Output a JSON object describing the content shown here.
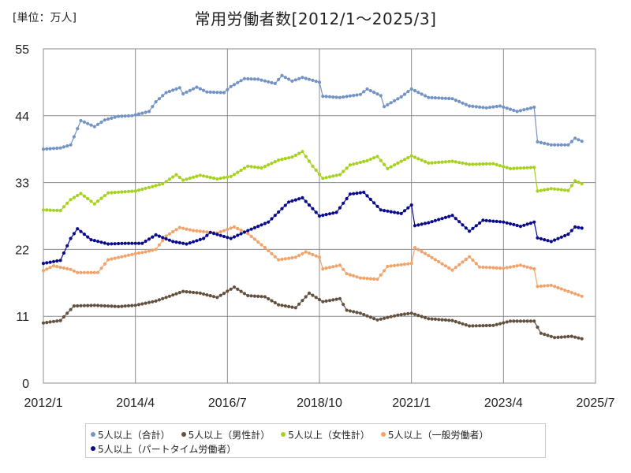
{
  "header": {
    "unit": "[単位：万人]",
    "title": "常用労働者数[2012/1～2025/3]"
  },
  "legend": [
    {
      "label": "5人以上（合計）",
      "color": "#7393c4"
    },
    {
      "label": "5人以上（男性計）",
      "color": "#62513f"
    },
    {
      "label": "5人以上（女性計）",
      "color": "#a6d11e"
    },
    {
      "label": "5人以上（一般労働者）",
      "color": "#f0a46c"
    },
    {
      "label": "5人以上（パートタイム労働者）",
      "color": "#0a0a8c"
    }
  ],
  "chart_data": {
    "type": "line",
    "title": "常用労働者数[2012/1～2025/3]",
    "ylabel": "[単位：万人]",
    "ylim": [
      0,
      55
    ],
    "yticks": [
      0,
      11,
      22,
      33,
      44,
      55
    ],
    "xlim": [
      "2012/1",
      "2025/7"
    ],
    "xticks": [
      "2012/1",
      "2014/4",
      "2016/7",
      "2018/10",
      "2021/1",
      "2023/4",
      "2025/7"
    ],
    "grid": true,
    "legend_position": "bottom",
    "series": [
      {
        "name": "5人以上（合計）",
        "color": "#7393c4",
        "points": [
          [
            "2012/1",
            38.5
          ],
          [
            "2012/6",
            38.7
          ],
          [
            "2012/9",
            39.2
          ],
          [
            "2012/12",
            43.2
          ],
          [
            "2013/4",
            42.2
          ],
          [
            "2013/7",
            43.3
          ],
          [
            "2013/11",
            43.9
          ],
          [
            "2014/3",
            44.0
          ],
          [
            "2014/8",
            44.7
          ],
          [
            "2014/10",
            46.3
          ],
          [
            "2015/1",
            47.8
          ],
          [
            "2015/5",
            48.6
          ],
          [
            "2015/6",
            47.6
          ],
          [
            "2015/10",
            48.7
          ],
          [
            "2016/1",
            47.9
          ],
          [
            "2016/6",
            47.8
          ],
          [
            "2016/8",
            48.8
          ],
          [
            "2016/12",
            50.1
          ],
          [
            "2017/4",
            50.0
          ],
          [
            "2017/9",
            49.3
          ],
          [
            "2017/11",
            50.6
          ],
          [
            "2018/2",
            49.7
          ],
          [
            "2018/5",
            50.3
          ],
          [
            "2018/10",
            49.5
          ],
          [
            "2018/11",
            47.2
          ],
          [
            "2019/4",
            47.0
          ],
          [
            "2019/10",
            47.5
          ],
          [
            "2019/12",
            48.4
          ],
          [
            "2020/4",
            47.3
          ],
          [
            "2020/5",
            45.5
          ],
          [
            "2020/10",
            47.1
          ],
          [
            "2021/1",
            48.4
          ],
          [
            "2021/6",
            47.0
          ],
          [
            "2022/1",
            46.8
          ],
          [
            "2022/6",
            45.6
          ],
          [
            "2022/11",
            45.3
          ],
          [
            "2023/3",
            45.6
          ],
          [
            "2023/8",
            44.7
          ],
          [
            "2024/1",
            45.4
          ],
          [
            "2024/2",
            39.7
          ],
          [
            "2024/6",
            39.2
          ],
          [
            "2024/11",
            39.2
          ],
          [
            "2025/1",
            40.3
          ],
          [
            "2025/3",
            39.8
          ]
        ]
      },
      {
        "name": "5人以上（男性計）",
        "color": "#62513f",
        "points": [
          [
            "2012/1",
            9.9
          ],
          [
            "2012/6",
            10.3
          ],
          [
            "2012/10",
            12.7
          ],
          [
            "2013/4",
            12.8
          ],
          [
            "2013/11",
            12.6
          ],
          [
            "2014/4",
            12.8
          ],
          [
            "2014/10",
            13.5
          ],
          [
            "2015/3",
            14.5
          ],
          [
            "2015/6",
            15.1
          ],
          [
            "2015/11",
            14.8
          ],
          [
            "2016/4",
            14.1
          ],
          [
            "2016/9",
            15.8
          ],
          [
            "2017/1",
            14.4
          ],
          [
            "2017/6",
            14.2
          ],
          [
            "2017/10",
            12.9
          ],
          [
            "2018/3",
            12.4
          ],
          [
            "2018/7",
            14.8
          ],
          [
            "2018/11",
            13.4
          ],
          [
            "2019/4",
            13.9
          ],
          [
            "2019/6",
            12.0
          ],
          [
            "2019/10",
            11.5
          ],
          [
            "2020/3",
            10.4
          ],
          [
            "2020/9",
            11.2
          ],
          [
            "2021/1",
            11.5
          ],
          [
            "2021/6",
            10.6
          ],
          [
            "2022/1",
            10.3
          ],
          [
            "2022/6",
            9.4
          ],
          [
            "2023/1",
            9.5
          ],
          [
            "2023/6",
            10.2
          ],
          [
            "2024/1",
            10.2
          ],
          [
            "2024/3",
            8.2
          ],
          [
            "2024/7",
            7.5
          ],
          [
            "2024/12",
            7.7
          ],
          [
            "2025/3",
            7.3
          ]
        ]
      },
      {
        "name": "5人以上（女性計）",
        "color": "#a6d11e",
        "points": [
          [
            "2012/1",
            28.5
          ],
          [
            "2012/6",
            28.4
          ],
          [
            "2012/9",
            30.2
          ],
          [
            "2012/12",
            31.2
          ],
          [
            "2013/4",
            29.5
          ],
          [
            "2013/8",
            31.3
          ],
          [
            "2014/1",
            31.5
          ],
          [
            "2014/4",
            31.6
          ],
          [
            "2014/8",
            32.2
          ],
          [
            "2014/12",
            32.8
          ],
          [
            "2015/4",
            34.3
          ],
          [
            "2015/6",
            33.4
          ],
          [
            "2015/11",
            34.2
          ],
          [
            "2016/4",
            33.6
          ],
          [
            "2016/8",
            34.0
          ],
          [
            "2017/1",
            35.7
          ],
          [
            "2017/5",
            35.4
          ],
          [
            "2017/10",
            36.7
          ],
          [
            "2018/2",
            37.2
          ],
          [
            "2018/5",
            38.1
          ],
          [
            "2018/8",
            35.7
          ],
          [
            "2018/11",
            33.7
          ],
          [
            "2019/4",
            34.3
          ],
          [
            "2019/7",
            35.9
          ],
          [
            "2019/12",
            36.6
          ],
          [
            "2020/3",
            37.3
          ],
          [
            "2020/6",
            35.3
          ],
          [
            "2020/10",
            36.5
          ],
          [
            "2021/1",
            37.4
          ],
          [
            "2021/6",
            36.2
          ],
          [
            "2022/1",
            36.5
          ],
          [
            "2022/6",
            36.0
          ],
          [
            "2023/1",
            36.1
          ],
          [
            "2023/6",
            35.3
          ],
          [
            "2024/1",
            35.5
          ],
          [
            "2024/2",
            31.6
          ],
          [
            "2024/6",
            32.0
          ],
          [
            "2024/11",
            31.7
          ],
          [
            "2025/1",
            33.3
          ],
          [
            "2025/3",
            32.8
          ]
        ]
      },
      {
        "name": "5人以上（一般労働者）",
        "color": "#f0a46c",
        "points": [
          [
            "2012/1",
            18.5
          ],
          [
            "2012/4",
            19.3
          ],
          [
            "2012/9",
            18.7
          ],
          [
            "2012/11",
            18.2
          ],
          [
            "2013/5",
            18.2
          ],
          [
            "2013/8",
            20.3
          ],
          [
            "2014/4",
            21.3
          ],
          [
            "2014/7",
            21.6
          ],
          [
            "2014/10",
            22.0
          ],
          [
            "2015/1",
            24.2
          ],
          [
            "2015/5",
            25.6
          ],
          [
            "2015/9",
            25.1
          ],
          [
            "2016/4",
            24.7
          ],
          [
            "2016/9",
            25.7
          ],
          [
            "2017/1",
            24.6
          ],
          [
            "2017/6",
            22.3
          ],
          [
            "2017/10",
            20.3
          ],
          [
            "2018/3",
            20.7
          ],
          [
            "2018/6",
            21.6
          ],
          [
            "2018/10",
            20.7
          ],
          [
            "2018/11",
            18.8
          ],
          [
            "2019/4",
            19.4
          ],
          [
            "2019/6",
            18.0
          ],
          [
            "2019/10",
            17.3
          ],
          [
            "2020/3",
            17.1
          ],
          [
            "2020/6",
            19.2
          ],
          [
            "2021/1",
            19.7
          ],
          [
            "2021/2",
            22.3
          ],
          [
            "2021/6",
            21.0
          ],
          [
            "2022/1",
            18.6
          ],
          [
            "2022/6",
            20.8
          ],
          [
            "2022/9",
            19.1
          ],
          [
            "2023/4",
            18.9
          ],
          [
            "2023/9",
            19.4
          ],
          [
            "2024/1",
            18.8
          ],
          [
            "2024/2",
            15.9
          ],
          [
            "2024/6",
            16.1
          ],
          [
            "2024/11",
            15.1
          ],
          [
            "2025/3",
            14.3
          ]
        ]
      },
      {
        "name": "5人以上（パートタイム労働者）",
        "color": "#0a0a8c",
        "points": [
          [
            "2012/1",
            19.7
          ],
          [
            "2012/6",
            20.2
          ],
          [
            "2012/9",
            23.8
          ],
          [
            "2012/11",
            25.4
          ],
          [
            "2013/3",
            23.6
          ],
          [
            "2013/8",
            22.9
          ],
          [
            "2014/1",
            23.0
          ],
          [
            "2014/6",
            23.0
          ],
          [
            "2014/10",
            24.4
          ],
          [
            "2015/3",
            23.3
          ],
          [
            "2015/7",
            22.9
          ],
          [
            "2015/12",
            23.8
          ],
          [
            "2016/2",
            24.8
          ],
          [
            "2016/8",
            23.8
          ],
          [
            "2017/1",
            25.1
          ],
          [
            "2017/7",
            26.5
          ],
          [
            "2018/1",
            29.8
          ],
          [
            "2018/5",
            30.5
          ],
          [
            "2018/10",
            27.5
          ],
          [
            "2019/3",
            28.1
          ],
          [
            "2019/7",
            31.1
          ],
          [
            "2019/11",
            31.4
          ],
          [
            "2020/4",
            28.5
          ],
          [
            "2020/10",
            27.9
          ],
          [
            "2021/1",
            29.3
          ],
          [
            "2021/2",
            25.9
          ],
          [
            "2021/6",
            26.4
          ],
          [
            "2022/1",
            27.6
          ],
          [
            "2022/6",
            25.0
          ],
          [
            "2022/10",
            26.8
          ],
          [
            "2023/4",
            26.5
          ],
          [
            "2023/9",
            25.8
          ],
          [
            "2024/1",
            26.5
          ],
          [
            "2024/2",
            23.9
          ],
          [
            "2024/6",
            23.3
          ],
          [
            "2024/11",
            24.5
          ],
          [
            "2025/1",
            25.7
          ],
          [
            "2025/3",
            25.5
          ]
        ]
      }
    ]
  }
}
